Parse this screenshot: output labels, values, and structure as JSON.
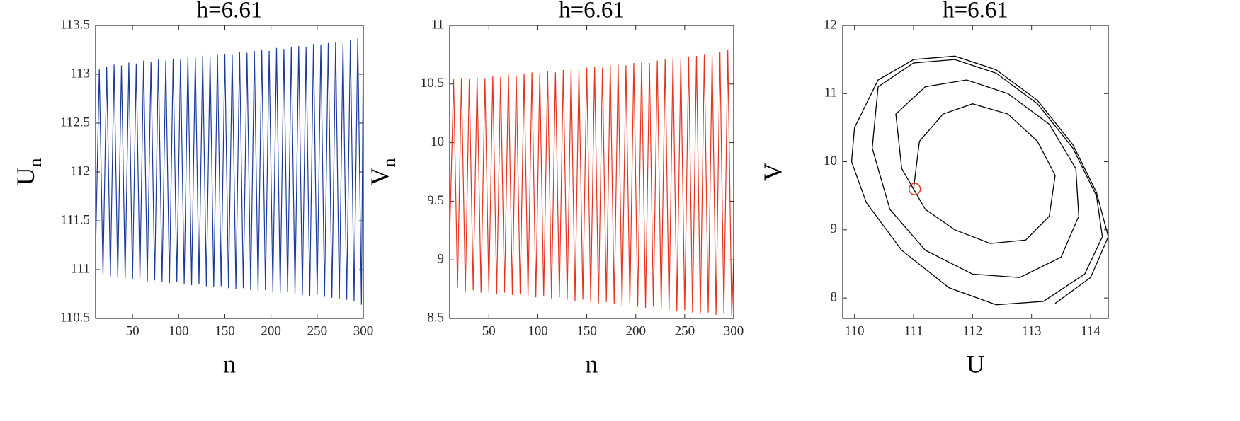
{
  "chart_data": [
    {
      "type": "line",
      "title": "h=6.61",
      "xlabel": "n",
      "ylabel": "U",
      "ylabel_sub": "n",
      "color": "#1c3a9c",
      "xlim": [
        10,
        300
      ],
      "xticks": [
        50,
        100,
        150,
        200,
        250,
        300
      ],
      "ylim": [
        110.5,
        113.5
      ],
      "yticks": [
        110.5,
        111,
        111.5,
        112,
        112.5,
        113,
        113.5
      ],
      "x": [
        10,
        14,
        18,
        22,
        26,
        30,
        34,
        38,
        42,
        46,
        50,
        54,
        58,
        62,
        66,
        70,
        74,
        78,
        82,
        86,
        90,
        94,
        98,
        102,
        106,
        110,
        114,
        118,
        122,
        126,
        130,
        134,
        138,
        142,
        146,
        150,
        154,
        158,
        162,
        166,
        170,
        174,
        178,
        182,
        186,
        190,
        194,
        198,
        202,
        206,
        210,
        214,
        218,
        222,
        226,
        230,
        234,
        238,
        242,
        246,
        250,
        254,
        258,
        262,
        266,
        270,
        274,
        278,
        282,
        286,
        290,
        294,
        298,
        300
      ],
      "values": [
        111.2,
        113.05,
        110.95,
        113.08,
        110.93,
        113.1,
        110.92,
        113.09,
        110.91,
        113.12,
        110.9,
        113.11,
        110.91,
        113.14,
        110.88,
        113.13,
        110.89,
        113.15,
        110.87,
        113.14,
        110.86,
        113.16,
        110.87,
        113.15,
        110.85,
        113.18,
        110.84,
        113.17,
        110.85,
        113.19,
        110.83,
        113.18,
        110.82,
        113.2,
        110.83,
        113.21,
        110.81,
        113.2,
        110.8,
        113.23,
        110.81,
        113.22,
        110.79,
        113.24,
        110.78,
        113.25,
        110.79,
        113.24,
        110.77,
        113.27,
        110.76,
        113.26,
        110.77,
        113.28,
        110.75,
        113.29,
        110.74,
        113.28,
        110.73,
        113.31,
        110.74,
        113.3,
        110.72,
        113.32,
        110.71,
        113.33,
        110.7,
        113.32,
        110.69,
        113.35,
        110.68,
        113.37,
        110.64,
        113.38
      ]
    },
    {
      "type": "line",
      "title": "h=6.61",
      "xlabel": "n",
      "ylabel": "V",
      "ylabel_sub": "n",
      "color": "#e8321e",
      "xlim": [
        10,
        300
      ],
      "xticks": [
        50,
        100,
        150,
        200,
        250,
        300
      ],
      "ylim": [
        8.5,
        11
      ],
      "yticks": [
        8.5,
        9,
        9.5,
        10,
        10.5,
        11
      ],
      "x": [
        10,
        14,
        18,
        22,
        26,
        30,
        34,
        38,
        42,
        46,
        50,
        54,
        58,
        62,
        66,
        70,
        74,
        78,
        82,
        86,
        90,
        94,
        98,
        102,
        106,
        110,
        114,
        118,
        122,
        126,
        130,
        134,
        138,
        142,
        146,
        150,
        154,
        158,
        162,
        166,
        170,
        174,
        178,
        182,
        186,
        190,
        194,
        198,
        202,
        206,
        210,
        214,
        218,
        222,
        226,
        230,
        234,
        238,
        242,
        246,
        250,
        254,
        258,
        262,
        266,
        270,
        274,
        278,
        282,
        286,
        290,
        294,
        298,
        300
      ],
      "values": [
        9.2,
        10.54,
        8.76,
        10.55,
        8.73,
        10.54,
        8.74,
        10.56,
        8.72,
        10.55,
        8.73,
        10.57,
        8.71,
        10.56,
        8.72,
        10.58,
        8.7,
        10.57,
        8.71,
        10.59,
        8.69,
        10.6,
        8.68,
        10.59,
        8.69,
        10.61,
        8.67,
        10.6,
        8.68,
        10.62,
        8.66,
        10.63,
        8.65,
        10.62,
        8.66,
        10.64,
        8.64,
        10.65,
        8.63,
        10.64,
        8.64,
        10.66,
        8.62,
        10.67,
        8.61,
        10.66,
        8.62,
        10.68,
        8.6,
        10.69,
        8.59,
        10.68,
        8.6,
        10.7,
        8.58,
        10.71,
        8.57,
        10.72,
        8.56,
        10.71,
        8.57,
        10.73,
        8.55,
        10.74,
        8.54,
        10.75,
        8.55,
        10.74,
        8.53,
        10.77,
        8.54,
        10.79,
        8.52,
        9.0
      ]
    },
    {
      "type": "phase",
      "title": "h=6.61",
      "xlabel": "U",
      "ylabel": "V",
      "color": "#000000",
      "xlim": [
        109.8,
        114.3
      ],
      "xticks": [
        110,
        111,
        112,
        113,
        114
      ],
      "ylim": [
        7.7,
        12
      ],
      "yticks": [
        8,
        9,
        10,
        11,
        12
      ],
      "x": [
        111.0,
        111.1,
        111.5,
        112.0,
        112.6,
        113.1,
        113.4,
        113.3,
        112.9,
        112.3,
        111.7,
        111.2,
        110.8,
        110.7,
        111.2,
        111.9,
        112.6,
        113.3,
        113.75,
        113.8,
        113.5,
        112.8,
        112.0,
        111.2,
        110.6,
        110.3,
        110.4,
        111.0,
        111.7,
        112.4,
        113.1,
        113.7,
        114.1,
        114.2,
        113.9,
        113.2,
        112.4,
        111.6,
        110.8,
        110.2,
        109.95,
        110.0,
        110.4,
        111.0,
        111.7,
        112.4,
        113.1,
        113.7,
        114.1,
        114.3,
        114.0,
        113.4
      ],
      "values": [
        9.6,
        10.3,
        10.7,
        10.85,
        10.7,
        10.3,
        9.8,
        9.2,
        8.85,
        8.8,
        9.0,
        9.3,
        9.9,
        10.7,
        11.1,
        11.2,
        11.0,
        10.55,
        9.9,
        9.2,
        8.6,
        8.3,
        8.35,
        8.7,
        9.3,
        10.2,
        11.1,
        11.45,
        11.5,
        11.3,
        10.85,
        10.2,
        9.5,
        8.9,
        8.35,
        7.95,
        7.9,
        8.15,
        8.7,
        9.4,
        10.0,
        10.5,
        11.2,
        11.5,
        11.55,
        11.35,
        10.9,
        10.25,
        9.55,
        8.9,
        8.3,
        7.92
      ],
      "marker": {
        "x": 111.02,
        "y": 9.6,
        "color": "#e8321e"
      }
    }
  ]
}
